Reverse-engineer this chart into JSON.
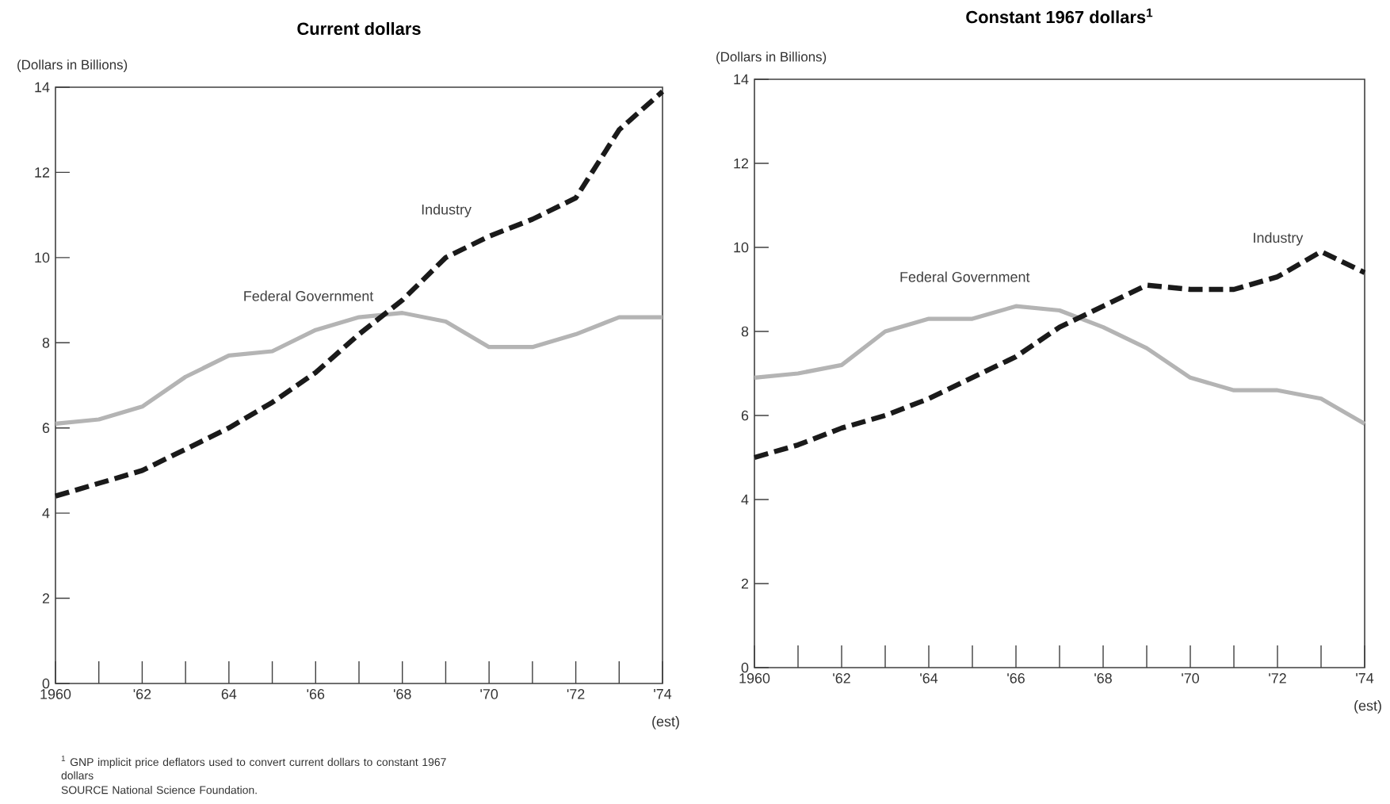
{
  "chart_data": [
    {
      "type": "line",
      "title": "Current dollars",
      "ylabel": "(Dollars in Billions)",
      "x": [
        1960,
        1961,
        1962,
        1963,
        1964,
        1965,
        1966,
        1967,
        1968,
        1969,
        1970,
        1971,
        1972,
        1973,
        1974
      ],
      "series": [
        {
          "name": "Federal Government",
          "color": "#b4b4b4",
          "line_style": "solid",
          "values": [
            6.1,
            6.2,
            6.5,
            7.2,
            7.7,
            7.8,
            8.3,
            8.6,
            8.7,
            8.5,
            7.9,
            7.9,
            8.2,
            8.6,
            8.6
          ]
        },
        {
          "name": "Industry",
          "color": "#1a1a1a",
          "line_style": "dashed",
          "values": [
            4.4,
            4.7,
            5.0,
            5.5,
            6.0,
            6.6,
            7.3,
            8.2,
            9.0,
            10.0,
            10.5,
            10.9,
            11.4,
            13.0,
            13.9
          ]
        }
      ],
      "xlim": [
        1960,
        1974
      ],
      "xticks": [
        1960,
        {
          "value": 1961,
          "label": null
        },
        {
          "value": 1962,
          "label": "'62"
        },
        {
          "value": 1963,
          "label": null
        },
        {
          "value": 1964,
          "label": "64"
        },
        {
          "value": 1965,
          "label": null
        },
        {
          "value": 1966,
          "label": "'66"
        },
        {
          "value": 1967,
          "label": null
        },
        {
          "value": 1968,
          "label": "'68"
        },
        {
          "value": 1969,
          "label": null
        },
        {
          "value": 1970,
          "label": "'70"
        },
        {
          "value": 1971,
          "label": null
        },
        {
          "value": 1972,
          "label": "'72"
        },
        {
          "value": 1973,
          "label": null
        },
        {
          "value": 1974,
          "label": "'74"
        }
      ],
      "ylim": [
        0,
        14
      ],
      "yticks": [
        0,
        2,
        4,
        6,
        8,
        10,
        12,
        14
      ],
      "annotations": [
        "(est)",
        "$^{1}$ GNP implicit price deflators used to convert current dollars to constant 1967 dollars",
        "SOURCE  National Science Foundation."
      ]
    },
    {
      "type": "line",
      "title": "Constant 1967 dollars$^{1}$",
      "ylabel": "(Dollars in Billions)",
      "x": [
        1960,
        1961,
        1962,
        1963,
        1964,
        1965,
        1966,
        1967,
        1968,
        1969,
        1970,
        1971,
        1972,
        1973,
        1974
      ],
      "series": [
        {
          "name": "Federal Government",
          "color": "#b4b4b4",
          "line_style": "solid",
          "values": [
            6.9,
            7.0,
            7.2,
            8.0,
            8.3,
            8.3,
            8.6,
            8.5,
            8.1,
            7.6,
            6.9,
            6.6,
            6.6,
            6.4,
            5.8
          ]
        },
        {
          "name": "Industry",
          "color": "#1a1a1a",
          "line_style": "dashed",
          "values": [
            5.0,
            5.3,
            5.7,
            6.0,
            6.4,
            6.9,
            7.4,
            8.1,
            8.6,
            9.1,
            9.0,
            9.0,
            9.3,
            9.9,
            9.4
          ]
        }
      ],
      "xlim": [
        1960,
        1974
      ],
      "xticks": [
        1960,
        {
          "value": 1961,
          "label": null
        },
        {
          "value": 1962,
          "label": "'62"
        },
        {
          "value": 1963,
          "label": null
        },
        {
          "value": 1964,
          "label": "'64"
        },
        {
          "value": 1965,
          "label": null
        },
        {
          "value": 1966,
          "label": "'66"
        },
        {
          "value": 1967,
          "label": null
        },
        {
          "value": 1968,
          "label": "'68"
        },
        {
          "value": 1969,
          "label": null
        },
        {
          "value": 1970,
          "label": "'70"
        },
        {
          "value": 1971,
          "label": null
        },
        {
          "value": 1972,
          "label": "'72"
        },
        {
          "value": 1973,
          "label": null
        },
        {
          "value": 1974,
          "label": "'74"
        }
      ],
      "ylim": [
        0,
        14
      ],
      "yticks": [
        0,
        2,
        4,
        6,
        8,
        10,
        12,
        14
      ],
      "annotations": [
        "(est)"
      ]
    }
  ]
}
